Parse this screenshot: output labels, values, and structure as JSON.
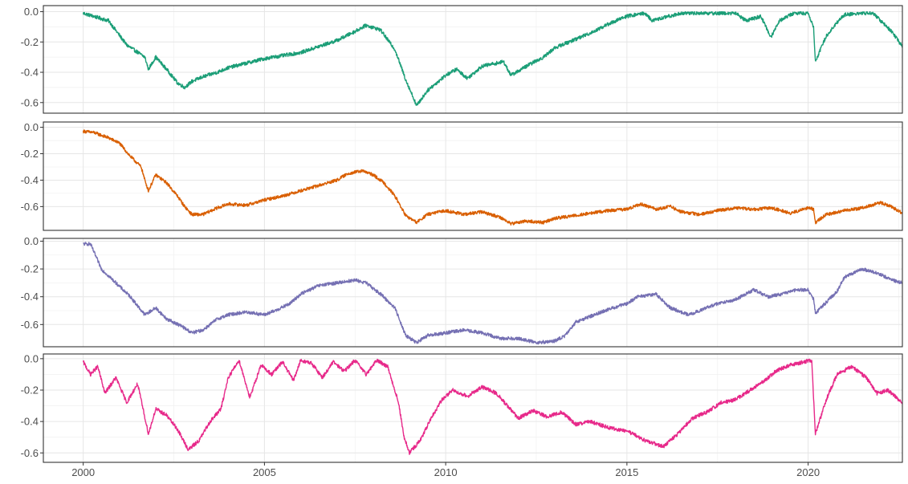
{
  "chart_data": {
    "type": "line",
    "layout": "four vertically stacked panels sharing one x axis",
    "grid": true,
    "xlim": [
      1998.9,
      2022.6
    ],
    "x_ticks": [
      2000,
      2005,
      2010,
      2015,
      2020
    ],
    "x_tick_labels": [
      "2000",
      "2005",
      "2010",
      "2015",
      "2020"
    ],
    "panels": [
      {
        "color": "#1b9e77",
        "ylim": [
          -0.67,
          0.04
        ],
        "y_ticks": [
          0.0,
          -0.2,
          -0.4,
          -0.6
        ],
        "y_tick_labels": [
          "0.0",
          "-0.2",
          "-0.4",
          "-0.6"
        ],
        "x": [
          2000.0,
          2000.7,
          2001.2,
          2001.7,
          2001.8,
          2002.0,
          2002.3,
          2002.6,
          2002.8,
          2003.0,
          2003.3,
          2003.7,
          2004.0,
          2004.5,
          2005.0,
          2005.5,
          2006.0,
          2006.5,
          2007.0,
          2007.5,
          2007.8,
          2008.2,
          2008.6,
          2008.9,
          2009.2,
          2009.5,
          2010.0,
          2010.3,
          2010.6,
          2011.0,
          2011.6,
          2011.8,
          2012.3,
          2012.7,
          2013.0,
          2013.5,
          2014.0,
          2014.5,
          2015.0,
          2015.5,
          2015.7,
          2016.0,
          2016.5,
          2017.0,
          2017.5,
          2018.0,
          2018.3,
          2018.7,
          2018.97,
          2019.2,
          2019.6,
          2020.0,
          2020.15,
          2020.2,
          2020.5,
          2020.8,
          2021.0,
          2021.5,
          2021.8,
          2022.0,
          2022.3,
          2022.6
        ],
        "y": [
          -0.01,
          -0.06,
          -0.22,
          -0.3,
          -0.38,
          -0.3,
          -0.38,
          -0.47,
          -0.5,
          -0.46,
          -0.43,
          -0.4,
          -0.37,
          -0.34,
          -0.31,
          -0.29,
          -0.27,
          -0.23,
          -0.19,
          -0.13,
          -0.09,
          -0.12,
          -0.25,
          -0.45,
          -0.62,
          -0.52,
          -0.42,
          -0.38,
          -0.44,
          -0.36,
          -0.33,
          -0.42,
          -0.35,
          -0.3,
          -0.24,
          -0.19,
          -0.14,
          -0.08,
          -0.03,
          -0.01,
          -0.06,
          -0.04,
          -0.01,
          -0.01,
          -0.01,
          -0.01,
          -0.06,
          -0.03,
          -0.17,
          -0.06,
          -0.01,
          -0.01,
          -0.1,
          -0.33,
          -0.16,
          -0.07,
          -0.02,
          -0.01,
          -0.01,
          -0.06,
          -0.13,
          -0.23
        ]
      },
      {
        "color": "#d95f02",
        "ylim": [
          -0.78,
          0.04
        ],
        "y_ticks": [
          0.0,
          -0.2,
          -0.4,
          -0.6
        ],
        "y_tick_labels": [
          "0.0",
          "-0.2",
          "-0.4",
          "-0.6"
        ],
        "x": [
          2000.0,
          2000.3,
          2000.7,
          2001.0,
          2001.3,
          2001.6,
          2001.7,
          2001.8,
          2002.0,
          2002.3,
          2002.6,
          2002.8,
          2003.0,
          2003.3,
          2003.7,
          2004.0,
          2004.5,
          2005.0,
          2005.5,
          2006.0,
          2006.5,
          2007.0,
          2007.3,
          2007.7,
          2008.0,
          2008.3,
          2008.6,
          2008.9,
          2009.2,
          2009.5,
          2010.0,
          2010.5,
          2011.0,
          2011.5,
          2011.8,
          2012.2,
          2012.7,
          2013.0,
          2013.5,
          2014.0,
          2014.5,
          2015.0,
          2015.4,
          2015.8,
          2016.2,
          2016.5,
          2017.0,
          2017.5,
          2018.0,
          2018.5,
          2019.0,
          2019.5,
          2020.0,
          2020.15,
          2020.2,
          2020.5,
          2021.0,
          2021.5,
          2022.0,
          2022.3,
          2022.6
        ],
        "y": [
          -0.03,
          -0.04,
          -0.08,
          -0.12,
          -0.22,
          -0.3,
          -0.4,
          -0.48,
          -0.36,
          -0.42,
          -0.52,
          -0.6,
          -0.66,
          -0.66,
          -0.61,
          -0.58,
          -0.59,
          -0.55,
          -0.52,
          -0.48,
          -0.44,
          -0.4,
          -0.35,
          -0.33,
          -0.36,
          -0.42,
          -0.52,
          -0.67,
          -0.72,
          -0.66,
          -0.63,
          -0.66,
          -0.64,
          -0.68,
          -0.73,
          -0.71,
          -0.72,
          -0.69,
          -0.67,
          -0.65,
          -0.63,
          -0.62,
          -0.58,
          -0.62,
          -0.6,
          -0.64,
          -0.66,
          -0.63,
          -0.61,
          -0.62,
          -0.61,
          -0.65,
          -0.61,
          -0.62,
          -0.72,
          -0.66,
          -0.63,
          -0.61,
          -0.57,
          -0.6,
          -0.65
        ]
      },
      {
        "color": "#7570b3",
        "ylim": [
          -0.76,
          0.02
        ],
        "y_ticks": [
          0.0,
          -0.2,
          -0.4,
          -0.6
        ],
        "y_tick_labels": [
          "0.0",
          "-0.2",
          "-0.4",
          "-0.6"
        ],
        "x": [
          2000.0,
          2000.2,
          2000.5,
          2000.9,
          2001.3,
          2001.7,
          2002.0,
          2002.3,
          2002.7,
          2003.0,
          2003.3,
          2003.7,
          2004.0,
          2004.5,
          2005.0,
          2005.3,
          2005.7,
          2006.0,
          2006.5,
          2007.0,
          2007.5,
          2007.8,
          2008.2,
          2008.6,
          2008.9,
          2009.2,
          2009.5,
          2010.0,
          2010.5,
          2011.0,
          2011.5,
          2012.0,
          2012.5,
          2013.0,
          2013.3,
          2013.6,
          2014.0,
          2014.5,
          2015.0,
          2015.3,
          2015.8,
          2016.2,
          2016.7,
          2017.0,
          2017.5,
          2018.0,
          2018.5,
          2018.9,
          2019.3,
          2019.7,
          2020.0,
          2020.15,
          2020.2,
          2020.5,
          2020.8,
          2021.0,
          2021.5,
          2022.0,
          2022.3,
          2022.6
        ],
        "y": [
          -0.02,
          -0.02,
          -0.2,
          -0.3,
          -0.4,
          -0.53,
          -0.48,
          -0.56,
          -0.61,
          -0.66,
          -0.64,
          -0.56,
          -0.53,
          -0.51,
          -0.53,
          -0.5,
          -0.45,
          -0.38,
          -0.32,
          -0.3,
          -0.28,
          -0.3,
          -0.38,
          -0.48,
          -0.68,
          -0.73,
          -0.68,
          -0.66,
          -0.64,
          -0.66,
          -0.7,
          -0.7,
          -0.73,
          -0.72,
          -0.68,
          -0.58,
          -0.54,
          -0.49,
          -0.45,
          -0.4,
          -0.38,
          -0.48,
          -0.53,
          -0.5,
          -0.45,
          -0.42,
          -0.35,
          -0.4,
          -0.38,
          -0.35,
          -0.35,
          -0.42,
          -0.52,
          -0.44,
          -0.36,
          -0.26,
          -0.2,
          -0.24,
          -0.28,
          -0.3
        ]
      },
      {
        "color": "#e7298a",
        "ylim": [
          -0.66,
          0.03
        ],
        "y_ticks": [
          0.0,
          -0.2,
          -0.4,
          -0.6
        ],
        "y_tick_labels": [
          "0.0",
          "-0.2",
          "-0.4",
          "-0.6"
        ],
        "x": [
          2000.0,
          2000.2,
          2000.4,
          2000.6,
          2000.9,
          2001.2,
          2001.5,
          2001.8,
          2002.0,
          2002.3,
          2002.6,
          2002.9,
          2003.2,
          2003.5,
          2003.8,
          2004.0,
          2004.3,
          2004.6,
          2004.9,
          2005.2,
          2005.5,
          2005.8,
          2006.0,
          2006.3,
          2006.6,
          2006.9,
          2007.2,
          2007.5,
          2007.8,
          2008.1,
          2008.4,
          2008.7,
          2008.85,
          2009.0,
          2009.3,
          2009.6,
          2009.9,
          2010.2,
          2010.6,
          2011.0,
          2011.4,
          2011.7,
          2012.0,
          2012.4,
          2012.8,
          2013.2,
          2013.6,
          2014.0,
          2014.5,
          2015.0,
          2015.5,
          2016.0,
          2016.4,
          2016.8,
          2017.2,
          2017.6,
          2018.0,
          2018.4,
          2018.8,
          2019.1,
          2019.5,
          2019.9,
          2020.1,
          2020.15,
          2020.2,
          2020.5,
          2020.8,
          2021.2,
          2021.6,
          2021.9,
          2022.2,
          2022.6
        ],
        "y": [
          -0.02,
          -0.1,
          -0.05,
          -0.22,
          -0.12,
          -0.28,
          -0.16,
          -0.48,
          -0.32,
          -0.36,
          -0.45,
          -0.58,
          -0.52,
          -0.4,
          -0.32,
          -0.12,
          -0.01,
          -0.25,
          -0.04,
          -0.1,
          -0.02,
          -0.14,
          -0.01,
          -0.03,
          -0.12,
          -0.02,
          -0.08,
          -0.01,
          -0.1,
          -0.01,
          -0.05,
          -0.28,
          -0.5,
          -0.6,
          -0.52,
          -0.38,
          -0.26,
          -0.2,
          -0.24,
          -0.18,
          -0.22,
          -0.3,
          -0.38,
          -0.33,
          -0.37,
          -0.34,
          -0.42,
          -0.4,
          -0.44,
          -0.46,
          -0.52,
          -0.56,
          -0.48,
          -0.38,
          -0.34,
          -0.28,
          -0.26,
          -0.2,
          -0.14,
          -0.08,
          -0.04,
          -0.02,
          -0.01,
          -0.25,
          -0.48,
          -0.26,
          -0.1,
          -0.05,
          -0.12,
          -0.22,
          -0.2,
          -0.28
        ]
      }
    ]
  }
}
